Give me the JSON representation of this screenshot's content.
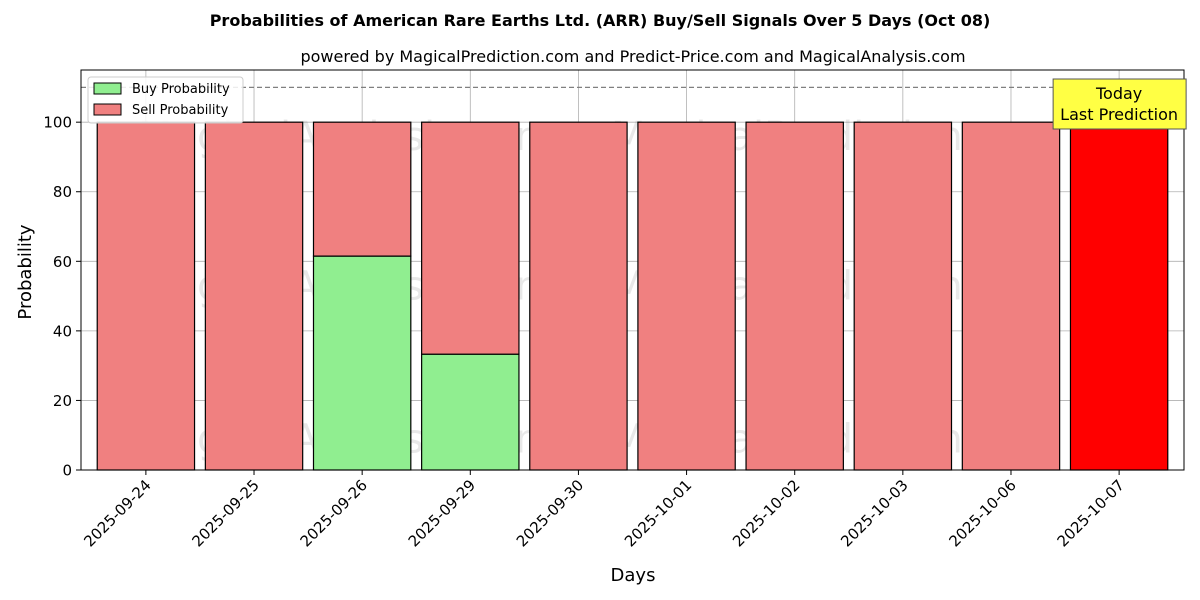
{
  "chart_data": {
    "type": "bar",
    "stacked": true,
    "title": "Probabilities of American Rare Earths Ltd. (ARR) Buy/Sell Signals Over 5 Days (Oct 08)",
    "subtitle": "powered by MagicalPrediction.com and Predict-Price.com and MagicalAnalysis.com",
    "xlabel": "Days",
    "ylabel": "Probability",
    "ylim": [
      0,
      115
    ],
    "yticks": [
      0,
      20,
      40,
      60,
      80,
      100
    ],
    "grid": true,
    "legend_position": "top-left",
    "categories": [
      "2025-09-24",
      "2025-09-25",
      "2025-09-26",
      "2025-09-29",
      "2025-09-30",
      "2025-10-01",
      "2025-10-02",
      "2025-10-03",
      "2025-10-06",
      "2025-10-07"
    ],
    "series": [
      {
        "name": "Buy Probability",
        "color": "#90ee90",
        "values": [
          0,
          0,
          61.5,
          33.3,
          0,
          0,
          0,
          0,
          0,
          0
        ]
      },
      {
        "name": "Sell Probability",
        "color": "#f08080",
        "values": [
          100,
          100,
          38.5,
          66.7,
          100,
          100,
          100,
          100,
          100,
          100
        ]
      }
    ],
    "highlight": {
      "index": 9,
      "color": "#ff0000"
    },
    "reference_line": {
      "y": 110,
      "style": "dashed",
      "color": "#808080"
    },
    "annotation": {
      "lines": [
        "Today",
        "Last Prediction"
      ],
      "background": "#ffff44"
    },
    "watermarks": [
      "MagicalAnalysis.com",
      "MagicalPrediction.com"
    ]
  }
}
